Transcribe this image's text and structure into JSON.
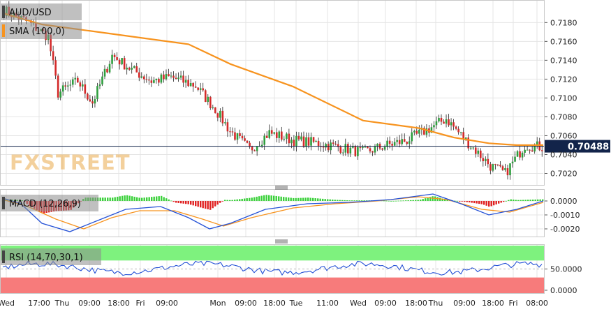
{
  "chart_data": {
    "type": "candlestick",
    "price_panel": {
      "symbol": "AUD/USD",
      "indicator_label": "SMA (100,0)",
      "last_price": "0.70488",
      "yticks": [
        "0.7180",
        "0.7160",
        "0.7140",
        "0.7120",
        "0.7100",
        "0.7080",
        "0.7060",
        "0.7040",
        "0.7020"
      ],
      "ylim": [
        0.701,
        0.7198
      ],
      "watermark": "FXSTREET"
    },
    "macd_panel": {
      "label": "MACD (12,26,9)",
      "yticks": [
        "0.0000",
        "-0.0010",
        "-0.0020"
      ],
      "ylim": [
        -0.0025,
        0.0007
      ]
    },
    "rsi_panel": {
      "label": "RSI (14,70,30,1)",
      "yticks": [
        "50.0000",
        "0.0000"
      ],
      "ylim": [
        -5,
        105
      ],
      "overbought": 70,
      "oversold": 30
    },
    "x_ticks": [
      "Wed",
      "17:00",
      "Thu",
      "09:00",
      "18:00",
      "Fri",
      "09:00",
      "Mon",
      "09:00",
      "18:00",
      "Tue",
      "11:00",
      "Wed",
      "09:00",
      "18:00",
      "Thu",
      "09:00",
      "18:00",
      "Fri",
      "08:00"
    ],
    "colors": {
      "up": "#2e9e3e",
      "down": "#d42a2a",
      "sma": "#f7931e",
      "macd": "#2451d6",
      "signal": "#f7931e",
      "rsi_line": "#2451d6",
      "overbought_zone": "#7ef27e",
      "oversold_zone": "#f77b7b",
      "last_price_box": "#12244a"
    }
  }
}
